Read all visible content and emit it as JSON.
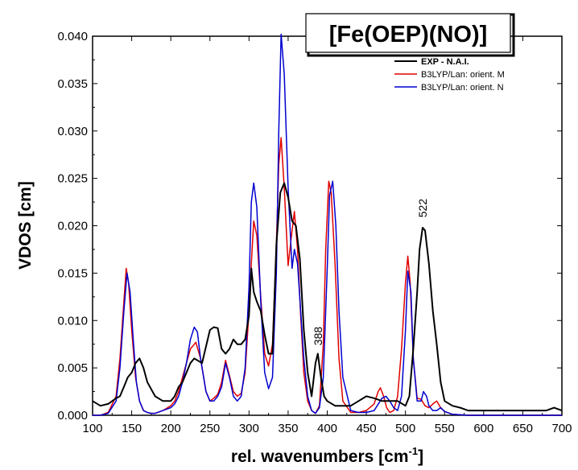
{
  "chart_data": {
    "type": "line",
    "title": "[Fe(OEP)(NO)]",
    "xlabel": "rel. wavenumbers [cm",
    "xlabel_sup": "-1",
    "xlabel_end": "]",
    "ylabel": "VDOS [cm]",
    "xlim": [
      100,
      700
    ],
    "ylim": [
      0,
      0.04
    ],
    "xticks": [
      100,
      150,
      200,
      250,
      300,
      350,
      400,
      450,
      500,
      550,
      600,
      650,
      700
    ],
    "xtick_labels": [
      "100",
      "150",
      "200",
      "250",
      "300",
      "350",
      "400",
      "450",
      "500",
      "550",
      "600",
      "650",
      "700"
    ],
    "yticks": [
      0,
      0.005,
      0.01,
      0.015,
      0.02,
      0.025,
      0.03,
      0.035,
      0.04
    ],
    "ytick_labels": [
      "0.000",
      "0.005",
      "0.010",
      "0.015",
      "0.020",
      "0.025",
      "0.030",
      "0.035",
      "0.040"
    ],
    "grid": false,
    "legend_position": "top-right",
    "annotations": [
      {
        "text": "388",
        "x": 388,
        "y": 0.0072
      },
      {
        "text": "522",
        "x": 522,
        "y": 0.0207
      }
    ],
    "series": [
      {
        "name": "EXP - N.A.I.",
        "color": "#000000",
        "x": [
          100,
          110,
          120,
          130,
          135,
          140,
          145,
          150,
          155,
          160,
          165,
          170,
          180,
          190,
          200,
          205,
          210,
          215,
          220,
          225,
          230,
          240,
          250,
          255,
          260,
          265,
          270,
          275,
          280,
          285,
          290,
          295,
          300,
          303,
          306,
          310,
          315,
          320,
          325,
          330,
          335,
          340,
          345,
          350,
          355,
          360,
          365,
          370,
          375,
          380,
          385,
          388,
          392,
          396,
          400,
          410,
          420,
          430,
          440,
          450,
          460,
          470,
          480,
          490,
          500,
          505,
          510,
          515,
          518,
          522,
          525,
          530,
          535,
          540,
          545,
          550,
          560,
          570,
          580,
          600,
          620,
          640,
          660,
          680,
          690,
          700
        ],
        "y": [
          0.0015,
          0.001,
          0.0012,
          0.0018,
          0.002,
          0.003,
          0.004,
          0.0045,
          0.0055,
          0.006,
          0.005,
          0.0035,
          0.002,
          0.0015,
          0.0015,
          0.002,
          0.003,
          0.0035,
          0.0045,
          0.0055,
          0.006,
          0.0055,
          0.009,
          0.0093,
          0.0092,
          0.007,
          0.0065,
          0.007,
          0.008,
          0.0075,
          0.0075,
          0.008,
          0.0105,
          0.0155,
          0.013,
          0.012,
          0.011,
          0.0085,
          0.0065,
          0.0065,
          0.018,
          0.0235,
          0.0245,
          0.023,
          0.0205,
          0.02,
          0.0165,
          0.009,
          0.0045,
          0.002,
          0.0055,
          0.0065,
          0.004,
          0.002,
          0.0015,
          0.001,
          0.001,
          0.001,
          0.0015,
          0.002,
          0.0018,
          0.0015,
          0.0015,
          0.0015,
          0.001,
          0.002,
          0.007,
          0.013,
          0.0175,
          0.0198,
          0.0195,
          0.016,
          0.011,
          0.0075,
          0.0035,
          0.0015,
          0.001,
          0.0008,
          0.0005,
          0.0005,
          0.0005,
          0.0005,
          0.0005,
          0.0005,
          0.0008,
          0.0005
        ]
      },
      {
        "name": "B3LYP/Lan: orient. M",
        "color": "#e00000",
        "x": [
          100,
          110,
          120,
          130,
          135,
          140,
          143,
          146,
          150,
          155,
          160,
          165,
          170,
          175,
          180,
          190,
          200,
          205,
          210,
          215,
          220,
          225,
          232,
          238,
          245,
          250,
          255,
          260,
          265,
          270,
          275,
          280,
          285,
          290,
          295,
          300,
          303,
          306,
          310,
          315,
          320,
          325,
          330,
          335,
          338,
          341,
          345,
          350,
          355,
          358,
          362,
          366,
          370,
          375,
          380,
          385,
          390,
          395,
          398,
          402,
          405,
          410,
          415,
          420,
          430,
          440,
          450,
          460,
          465,
          468,
          472,
          476,
          480,
          485,
          490,
          495,
          500,
          503,
          506,
          510,
          515,
          520,
          525,
          530,
          535,
          540,
          545,
          550,
          560,
          580,
          600,
          650,
          700
        ],
        "y": [
          0,
          0,
          0.0003,
          0.002,
          0.006,
          0.012,
          0.0155,
          0.014,
          0.009,
          0.004,
          0.0015,
          0.0005,
          0.0003,
          0.0002,
          0.0002,
          0.0005,
          0.001,
          0.0015,
          0.0025,
          0.004,
          0.0055,
          0.007,
          0.0077,
          0.006,
          0.0025,
          0.0015,
          0.0018,
          0.0022,
          0.0035,
          0.0058,
          0.0042,
          0.0025,
          0.002,
          0.0023,
          0.0045,
          0.011,
          0.016,
          0.0205,
          0.019,
          0.0125,
          0.0065,
          0.0052,
          0.0075,
          0.018,
          0.0265,
          0.0293,
          0.024,
          0.0158,
          0.0195,
          0.0215,
          0.0175,
          0.0105,
          0.0045,
          0.0015,
          0.0005,
          0.0002,
          0.001,
          0.0075,
          0.0175,
          0.0247,
          0.0235,
          0.016,
          0.006,
          0.0015,
          0.0003,
          0.0003,
          0.0005,
          0.0012,
          0.0025,
          0.0029,
          0.002,
          0.0008,
          0.0003,
          0.0005,
          0.002,
          0.007,
          0.014,
          0.0168,
          0.014,
          0.006,
          0.0018,
          0.0017,
          0.001,
          0.0008,
          0.0012,
          0.0015,
          0.0008,
          0.0004,
          0.0001,
          0,
          0,
          0,
          0
        ]
      },
      {
        "name": "B3LYP/Lan: orient. N",
        "color": "#0000d0",
        "x": [
          100,
          110,
          120,
          130,
          135,
          140,
          144,
          148,
          152,
          156,
          160,
          165,
          170,
          175,
          180,
          190,
          200,
          205,
          210,
          215,
          220,
          225,
          230,
          234,
          238,
          245,
          250,
          255,
          260,
          265,
          270,
          275,
          280,
          285,
          290,
          295,
          300,
          303,
          306,
          310,
          315,
          320,
          325,
          330,
          335,
          338,
          341,
          345,
          350,
          355,
          358,
          362,
          366,
          370,
          375,
          380,
          385,
          390,
          395,
          400,
          403,
          407,
          411,
          415,
          420,
          430,
          440,
          450,
          460,
          470,
          475,
          480,
          485,
          490,
          495,
          500,
          503,
          507,
          510,
          515,
          520,
          523,
          527,
          530,
          535,
          540,
          545,
          550,
          560,
          580,
          600,
          650,
          700
        ],
        "y": [
          0,
          0,
          0.0002,
          0.0015,
          0.005,
          0.011,
          0.015,
          0.013,
          0.008,
          0.0035,
          0.0015,
          0.0005,
          0.0003,
          0.0002,
          0.0002,
          0.0005,
          0.0008,
          0.0012,
          0.002,
          0.0035,
          0.0055,
          0.008,
          0.0093,
          0.0088,
          0.006,
          0.0025,
          0.0015,
          0.0015,
          0.002,
          0.003,
          0.0055,
          0.004,
          0.002,
          0.0015,
          0.002,
          0.005,
          0.0135,
          0.0225,
          0.0245,
          0.022,
          0.012,
          0.0045,
          0.0028,
          0.004,
          0.015,
          0.03,
          0.0402,
          0.036,
          0.024,
          0.0155,
          0.0175,
          0.016,
          0.011,
          0.006,
          0.002,
          0.0005,
          0.0002,
          0.0008,
          0.004,
          0.0155,
          0.0232,
          0.0247,
          0.02,
          0.011,
          0.004,
          0.0005,
          0.0003,
          0.0003,
          0.0005,
          0.0018,
          0.002,
          0.0015,
          0.0008,
          0.0005,
          0.002,
          0.009,
          0.0152,
          0.013,
          0.006,
          0.0015,
          0.0015,
          0.0025,
          0.002,
          0.001,
          0.0005,
          0.0005,
          0.0008,
          0.0004,
          0.0001,
          0,
          0,
          0,
          0
        ]
      }
    ]
  }
}
